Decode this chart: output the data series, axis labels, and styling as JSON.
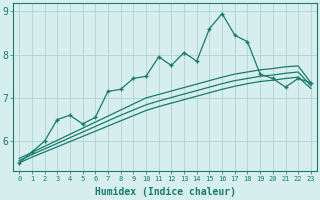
{
  "x": [
    0,
    1,
    2,
    3,
    4,
    5,
    6,
    7,
    8,
    9,
    10,
    11,
    12,
    13,
    14,
    15,
    16,
    17,
    18,
    19,
    20,
    21,
    22,
    23
  ],
  "line_main": [
    5.5,
    5.75,
    6.0,
    6.5,
    6.6,
    6.4,
    6.55,
    7.15,
    7.2,
    7.45,
    7.5,
    7.95,
    7.75,
    8.05,
    7.85,
    8.6,
    8.95,
    8.45,
    8.3,
    7.55,
    7.45,
    7.25,
    7.45,
    7.35
  ],
  "line_smooth1": [
    5.6,
    5.74,
    5.88,
    6.02,
    6.16,
    6.3,
    6.44,
    6.58,
    6.72,
    6.86,
    7.0,
    7.08,
    7.16,
    7.24,
    7.32,
    7.4,
    7.48,
    7.55,
    7.6,
    7.65,
    7.68,
    7.72,
    7.74,
    7.35
  ],
  "line_smooth2": [
    5.55,
    5.69,
    5.82,
    5.95,
    6.08,
    6.21,
    6.34,
    6.47,
    6.6,
    6.72,
    6.84,
    6.93,
    7.01,
    7.09,
    7.17,
    7.25,
    7.33,
    7.4,
    7.45,
    7.5,
    7.53,
    7.57,
    7.6,
    7.28
  ],
  "line_smooth3": [
    5.5,
    5.63,
    5.75,
    5.87,
    5.99,
    6.11,
    6.23,
    6.35,
    6.47,
    6.59,
    6.71,
    6.8,
    6.88,
    6.96,
    7.04,
    7.12,
    7.2,
    7.27,
    7.33,
    7.38,
    7.41,
    7.45,
    7.48,
    7.22
  ],
  "color_main": "#1a7a6e",
  "color_smooth": "#1a7a6e",
  "bg_color": "#d6eeee",
  "grid_color": "#aacccc",
  "axis_color": "#1a7a6e",
  "xlabel": "Humidex (Indice chaleur)",
  "ylim": [
    5.3,
    9.2
  ],
  "xlim": [
    -0.5,
    23.5
  ],
  "yticks": [
    6,
    7,
    8,
    9
  ],
  "xticks": [
    0,
    1,
    2,
    3,
    4,
    5,
    6,
    7,
    8,
    9,
    10,
    11,
    12,
    13,
    14,
    15,
    16,
    17,
    18,
    19,
    20,
    21,
    22,
    23
  ]
}
